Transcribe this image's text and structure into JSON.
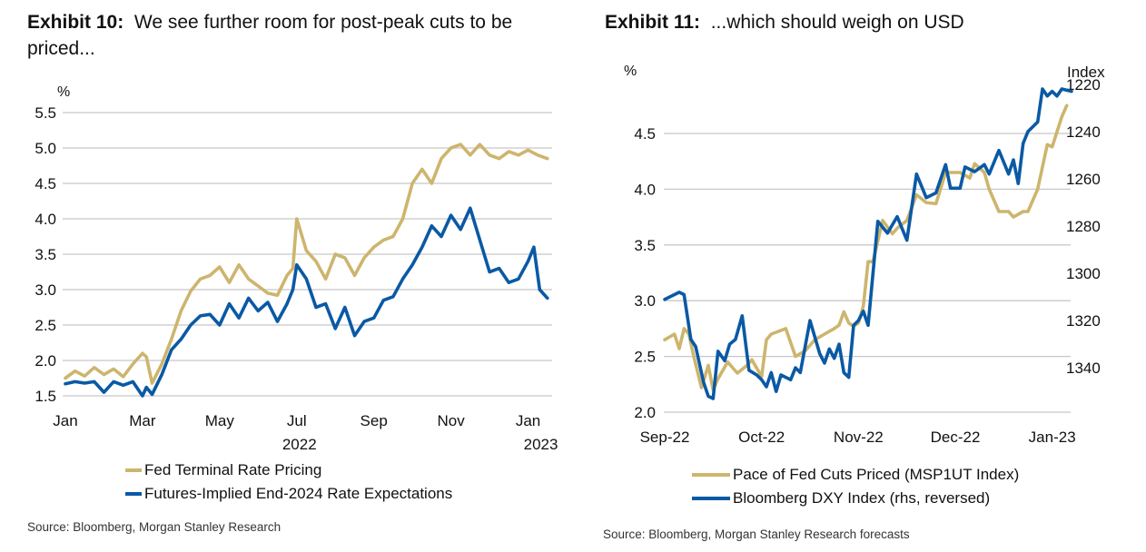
{
  "colors": {
    "gold": "#CDB56E",
    "blue": "#0A59A4",
    "grid": "#C8C8C8"
  },
  "exhibits": [
    {
      "label": "Exhibit 10:",
      "title": "We see further room for post-peak cuts to be priced...",
      "source": "Source: Bloomberg, Morgan Stanley Research"
    },
    {
      "label": "Exhibit 11:",
      "title": "...which should weigh on USD",
      "source": "Source: Bloomberg, Morgan Stanley Research forecasts"
    }
  ],
  "chart_data": [
    {
      "type": "line",
      "title": "We see further room for post-peak cuts to be priced...",
      "ylabel": "%",
      "xlabel": "",
      "ylim": [
        1.5,
        5.5
      ],
      "yticks": [
        "5.5",
        "5.0",
        "4.5",
        "4.0",
        "3.5",
        "3.0",
        "2.5",
        "2.0",
        "1.5"
      ],
      "ytick_values": [
        5.5,
        5.0,
        4.5,
        4.0,
        3.5,
        3.0,
        2.5,
        2.0,
        1.5
      ],
      "xticks": [
        "Jan",
        "Mar",
        "May",
        "Jul",
        "Sep",
        "Nov",
        "Jan"
      ],
      "xtick_months": [
        0,
        2,
        4,
        6,
        8,
        10,
        12
      ],
      "xyear_labels": [
        {
          "text": "2022",
          "month": 6
        },
        {
          "text": "2023",
          "month": 12
        }
      ],
      "xlim_months": [
        0,
        12.6
      ],
      "grid": true,
      "legend": "bottom-center",
      "series": [
        {
          "name": "Fed Terminal Rate Pricing",
          "color": "#CDB56E",
          "x_months": [
            0,
            0.25,
            0.5,
            0.75,
            1,
            1.25,
            1.5,
            1.75,
            2,
            2.1,
            2.25,
            2.5,
            2.75,
            3,
            3.25,
            3.5,
            3.75,
            4,
            4.25,
            4.5,
            4.75,
            5,
            5.25,
            5.5,
            5.75,
            5.9,
            6,
            6.25,
            6.5,
            6.75,
            7,
            7.25,
            7.5,
            7.75,
            8,
            8.25,
            8.5,
            8.75,
            9,
            9.25,
            9.5,
            9.75,
            10,
            10.25,
            10.5,
            10.75,
            11,
            11.25,
            11.5,
            11.75,
            12,
            12.25,
            12.5
          ],
          "values": [
            1.75,
            1.85,
            1.78,
            1.9,
            1.8,
            1.88,
            1.77,
            1.95,
            2.1,
            2.05,
            1.68,
            1.95,
            2.3,
            2.7,
            2.98,
            3.15,
            3.2,
            3.32,
            3.1,
            3.35,
            3.15,
            3.05,
            2.95,
            2.92,
            3.2,
            3.3,
            4.0,
            3.55,
            3.4,
            3.15,
            3.5,
            3.45,
            3.2,
            3.45,
            3.6,
            3.7,
            3.75,
            4.0,
            4.5,
            4.7,
            4.5,
            4.85,
            5.0,
            5.05,
            4.9,
            5.05,
            4.9,
            4.85,
            4.95,
            4.9,
            4.97,
            4.9,
            4.85
          ]
        },
        {
          "name": "Futures-Implied End-2024 Rate Expectations",
          "color": "#0A59A4",
          "x_months": [
            0,
            0.25,
            0.5,
            0.75,
            1,
            1.25,
            1.5,
            1.75,
            2,
            2.1,
            2.25,
            2.5,
            2.75,
            3,
            3.25,
            3.5,
            3.75,
            4,
            4.25,
            4.5,
            4.75,
            5,
            5.25,
            5.5,
            5.75,
            5.9,
            6,
            6.25,
            6.5,
            6.75,
            7,
            7.25,
            7.5,
            7.75,
            8,
            8.25,
            8.5,
            8.75,
            9,
            9.25,
            9.5,
            9.75,
            10,
            10.25,
            10.5,
            10.75,
            11,
            11.25,
            11.5,
            11.75,
            12,
            12.15,
            12.3,
            12.5
          ],
          "values": [
            1.67,
            1.7,
            1.68,
            1.7,
            1.55,
            1.7,
            1.65,
            1.7,
            1.5,
            1.62,
            1.52,
            1.8,
            2.15,
            2.3,
            2.5,
            2.63,
            2.65,
            2.5,
            2.8,
            2.6,
            2.88,
            2.7,
            2.82,
            2.55,
            2.8,
            3.0,
            3.35,
            3.15,
            2.75,
            2.8,
            2.45,
            2.75,
            2.35,
            2.55,
            2.6,
            2.85,
            2.9,
            3.15,
            3.35,
            3.6,
            3.9,
            3.75,
            4.05,
            3.85,
            4.15,
            3.7,
            3.25,
            3.3,
            3.1,
            3.15,
            3.4,
            3.6,
            3.0,
            2.88
          ]
        }
      ]
    },
    {
      "type": "line",
      "title": "...which should weigh on USD",
      "ylabel": "%",
      "y2label": "Index",
      "ylim": [
        2.0,
        4.5
      ],
      "y2lim_reversed": [
        1358,
        1222
      ],
      "yticks": [
        "4.5",
        "4.0",
        "3.5",
        "3.0",
        "2.5",
        "2.0"
      ],
      "ytick_values": [
        4.5,
        4.0,
        3.5,
        3.0,
        2.5,
        2.0
      ],
      "y2ticks": [
        "1220",
        "1240",
        "1260",
        "1280",
        "1300",
        "1320",
        "1340"
      ],
      "y2tick_values": [
        1220,
        1240,
        1260,
        1280,
        1300,
        1320,
        1340
      ],
      "xticks": [
        "Sep-22",
        "Oct-22",
        "Nov-22",
        "Dec-22",
        "Jan-23"
      ],
      "xtick_months": [
        0,
        1,
        2,
        3,
        4
      ],
      "xlim_months": [
        0,
        4.2
      ],
      "grid": true,
      "legend": "bottom-center",
      "series": [
        {
          "name": "Pace of Fed Cuts Priced (MSP1UT Index)",
          "axis": "left",
          "color": "#CDB56E",
          "x_months": [
            0,
            0.1,
            0.15,
            0.2,
            0.25,
            0.3,
            0.38,
            0.45,
            0.5,
            0.55,
            0.65,
            0.75,
            0.85,
            0.9,
            1.0,
            1.05,
            1.1,
            1.25,
            1.35,
            1.45,
            1.55,
            1.65,
            1.75,
            1.8,
            1.85,
            1.9,
            1.95,
            2.0,
            2.05,
            2.1,
            2.15,
            2.25,
            2.35,
            2.4,
            2.5,
            2.6,
            2.7,
            2.8,
            2.9,
            2.95,
            3.05,
            3.15,
            3.2,
            3.3,
            3.35,
            3.45,
            3.55,
            3.6,
            3.7,
            3.75,
            3.85,
            3.95,
            4.0,
            4.1,
            4.15
          ],
          "values": [
            2.65,
            2.7,
            2.57,
            2.75,
            2.7,
            2.5,
            2.22,
            2.42,
            2.2,
            2.3,
            2.45,
            2.35,
            2.42,
            2.47,
            2.32,
            2.65,
            2.7,
            2.75,
            2.5,
            2.55,
            2.65,
            2.7,
            2.75,
            2.78,
            2.9,
            2.8,
            2.77,
            2.8,
            2.95,
            3.35,
            3.35,
            3.72,
            3.6,
            3.65,
            3.72,
            3.95,
            3.88,
            3.87,
            4.15,
            4.15,
            4.15,
            4.1,
            4.23,
            4.15,
            4.0,
            3.8,
            3.8,
            3.75,
            3.8,
            3.8,
            4.0,
            4.4,
            4.38,
            4.65,
            4.75
          ]
        },
        {
          "name": "Bloomberg DXY Index (rhs, reversed)",
          "axis": "right",
          "color": "#0A59A4",
          "x_months": [
            0,
            0.1,
            0.15,
            0.2,
            0.27,
            0.32,
            0.4,
            0.45,
            0.5,
            0.55,
            0.62,
            0.67,
            0.73,
            0.8,
            0.87,
            0.95,
            1.0,
            1.05,
            1.1,
            1.15,
            1.2,
            1.3,
            1.35,
            1.4,
            1.5,
            1.6,
            1.65,
            1.7,
            1.75,
            1.8,
            1.85,
            1.9,
            1.95,
            2.0,
            2.05,
            2.1,
            2.2,
            2.3,
            2.4,
            2.5,
            2.6,
            2.7,
            2.8,
            2.9,
            2.95,
            3.0,
            3.05,
            3.1,
            3.2,
            3.3,
            3.35,
            3.45,
            3.55,
            3.6,
            3.65,
            3.7,
            3.75,
            3.85,
            3.9,
            3.95,
            4.0,
            4.05,
            4.1,
            4.2
          ],
          "values": [
            1311,
            1309,
            1308,
            1309,
            1328,
            1331,
            1346,
            1352,
            1353,
            1333,
            1337,
            1330,
            1328,
            1318,
            1341,
            1343,
            1345,
            1348,
            1342,
            1350,
            1343,
            1345,
            1340,
            1342,
            1320,
            1334,
            1338,
            1332,
            1336,
            1330,
            1342,
            1344,
            1322,
            1320,
            1316,
            1322,
            1278,
            1283,
            1276,
            1286,
            1258,
            1268,
            1266,
            1254,
            1264,
            1264,
            1264,
            1255,
            1257,
            1254,
            1258,
            1248,
            1258,
            1252,
            1262,
            1245,
            1240,
            1236,
            1222,
            1225,
            1223,
            1225,
            1222,
            1223
          ]
        }
      ]
    }
  ]
}
